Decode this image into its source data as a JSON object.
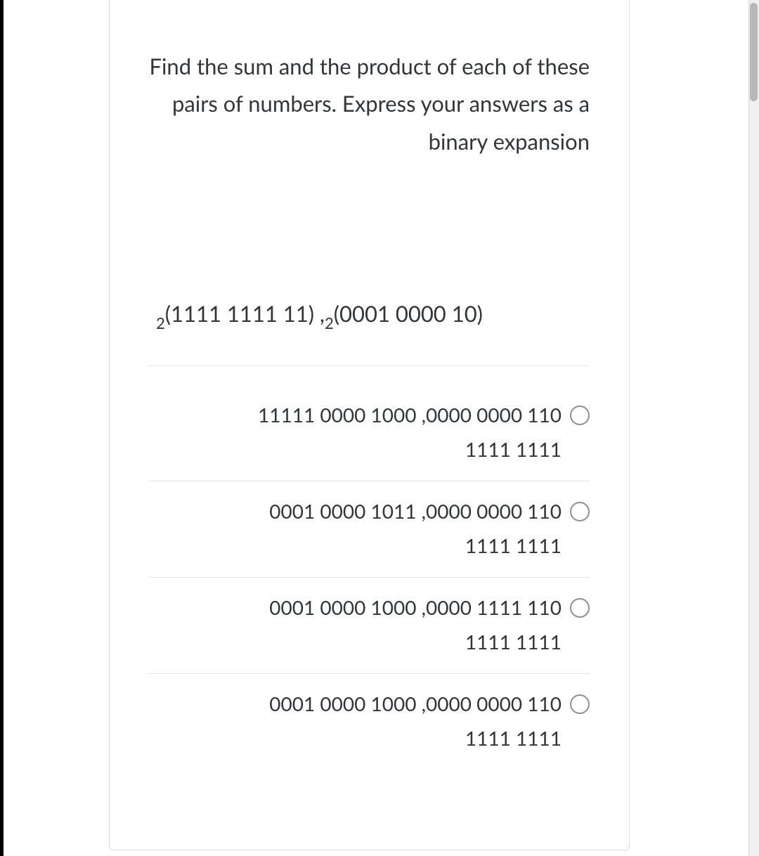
{
  "question": {
    "prompt": "Find the sum and the product of each of these pairs of numbers. Express your answers as a binary expansion",
    "formula_sub1": "2",
    "formula_part1": "(1111 1111 11) ,",
    "formula_sub2": "2",
    "formula_part2": "(0001 0000 10)"
  },
  "options": [
    {
      "line1": "11111 0000 1000 ,0000 0000 110",
      "line2": "1111 1111"
    },
    {
      "line1": "0001 0000 1011 ,0000 0000 110",
      "line2": "1111 1111"
    },
    {
      "line1": "0001 0000 1000 ,0000 1111 110",
      "line2": "1111 1111"
    },
    {
      "line1": "0001 0000 1000 ,0000 0000 110",
      "line2": "1111 1111"
    }
  ],
  "colors": {
    "page_bg": "#000000",
    "card_bg": "#ffffff",
    "card_border": "#d9dcde",
    "text": "#32363a",
    "divider": "#e3e5e7",
    "radio_border": "#8a9199"
  }
}
